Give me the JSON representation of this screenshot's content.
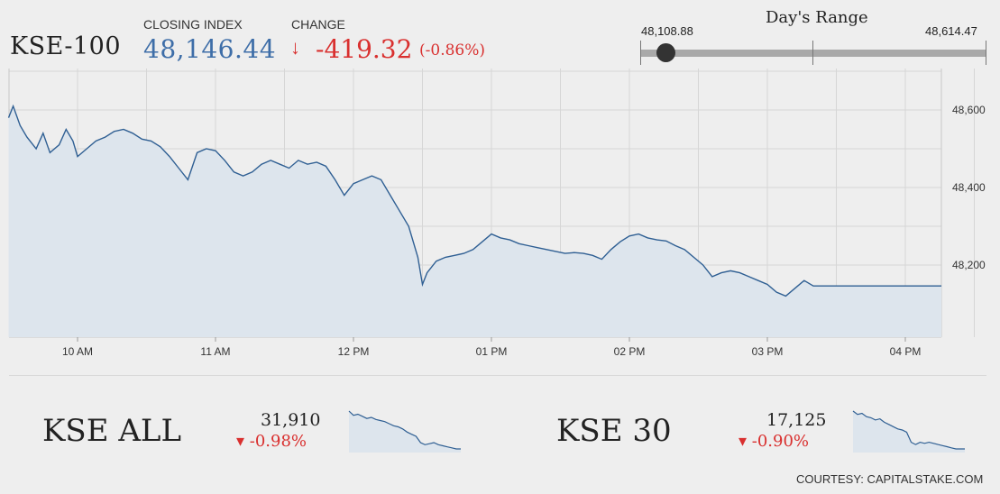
{
  "header": {
    "index_name": "KSE-100",
    "closing_label": "CLOSING INDEX",
    "closing_value": "48,146.44",
    "change_label": "CHANGE",
    "change_arrow": "↓",
    "change_value": "-419.32",
    "change_percent": "(-0.86%)"
  },
  "days_range": {
    "title": "Day's Range",
    "low": "48,108.88",
    "high": "48,614.47",
    "current_position_fraction": 0.075
  },
  "colors": {
    "line": "#2f5f93",
    "area": "#dde5ed",
    "negative": "#d9302f",
    "closing_value": "#3e6ea8"
  },
  "chart_data": {
    "type": "area",
    "x_ticks": [
      "10 AM",
      "11 AM",
      "12 PM",
      "01 PM",
      "02 PM",
      "03 PM",
      "04 PM"
    ],
    "y_ticks": [
      "48,600",
      "48,400",
      "48,200"
    ],
    "y_tick_values": [
      48600,
      48400,
      48200
    ],
    "ylim": [
      48000,
      48700
    ],
    "grid": true,
    "series": [
      {
        "x": [
          "09:30",
          "09:32",
          "09:35",
          "09:38",
          "09:42",
          "09:45",
          "09:48",
          "09:52",
          "09:55",
          "09:58",
          "10:00",
          "10:04",
          "10:08",
          "10:12",
          "10:16",
          "10:20",
          "10:24",
          "10:28",
          "10:32",
          "10:36",
          "10:40",
          "10:44",
          "10:48",
          "10:52",
          "10:56",
          "11:00",
          "11:04",
          "11:08",
          "11:12",
          "11:16",
          "11:20",
          "11:24",
          "11:28",
          "11:32",
          "11:36",
          "11:40",
          "11:44",
          "11:48",
          "11:52",
          "11:56",
          "12:00",
          "12:04",
          "12:08",
          "12:12",
          "12:16",
          "12:20",
          "12:24",
          "12:28",
          "12:30",
          "12:32",
          "12:36",
          "12:40",
          "12:44",
          "12:48",
          "12:52",
          "12:56",
          "13:00",
          "13:04",
          "13:08",
          "13:12",
          "13:16",
          "13:20",
          "13:24",
          "13:28",
          "13:32",
          "13:36",
          "13:40",
          "13:44",
          "13:48",
          "13:52",
          "13:56",
          "14:00",
          "14:04",
          "14:08",
          "14:12",
          "14:16",
          "14:20",
          "14:24",
          "14:28",
          "14:32",
          "14:36",
          "14:40",
          "14:44",
          "14:48",
          "14:52",
          "14:56",
          "15:00",
          "15:04",
          "15:08",
          "15:12",
          "15:16",
          "15:20",
          "15:24",
          "15:28",
          "15:32",
          "15:40",
          "15:50",
          "16:00",
          "16:10"
        ],
        "values": [
          48580,
          48610,
          48560,
          48530,
          48500,
          48540,
          48490,
          48510,
          48550,
          48520,
          48480,
          48500,
          48520,
          48530,
          48545,
          48550,
          48540,
          48525,
          48520,
          48505,
          48480,
          48450,
          48420,
          48490,
          48500,
          48495,
          48470,
          48440,
          48430,
          48440,
          48460,
          48470,
          48460,
          48450,
          48470,
          48460,
          48465,
          48455,
          48420,
          48380,
          48410,
          48420,
          48430,
          48420,
          48380,
          48340,
          48300,
          48220,
          48150,
          48180,
          48210,
          48220,
          48225,
          48230,
          48240,
          48260,
          48280,
          48270,
          48265,
          48255,
          48250,
          48245,
          48240,
          48235,
          48230,
          48232,
          48230,
          48225,
          48215,
          48240,
          48260,
          48275,
          48280,
          48270,
          48265,
          48262,
          48250,
          48240,
          48220,
          48200,
          48170,
          48180,
          48185,
          48180,
          48170,
          48160,
          48150,
          48130,
          48120,
          48140,
          48160,
          48146,
          48146,
          48146,
          48146,
          48146,
          48146,
          48146,
          48146
        ]
      }
    ]
  },
  "mini_indices": [
    {
      "name": "KSE ALL",
      "value": "31,910",
      "change": "▾ -0.98%",
      "sparkline": [
        100,
        96,
        97,
        95,
        93,
        94,
        92,
        91,
        90,
        88,
        86,
        85,
        83,
        80,
        78,
        76,
        70,
        68,
        69,
        70,
        68,
        67,
        66,
        65,
        64,
        64
      ]
    },
    {
      "name": "KSE 30",
      "value": "17,125",
      "change": "▾ -0.90%",
      "sparkline": [
        100,
        97,
        98,
        95,
        94,
        92,
        93,
        90,
        88,
        86,
        84,
        83,
        81,
        72,
        70,
        72,
        71,
        72,
        71,
        70,
        69,
        68,
        67,
        66,
        66,
        66
      ]
    }
  ],
  "footer": {
    "courtesy": "COURTESY: CAPITALSTAKE.COM"
  }
}
